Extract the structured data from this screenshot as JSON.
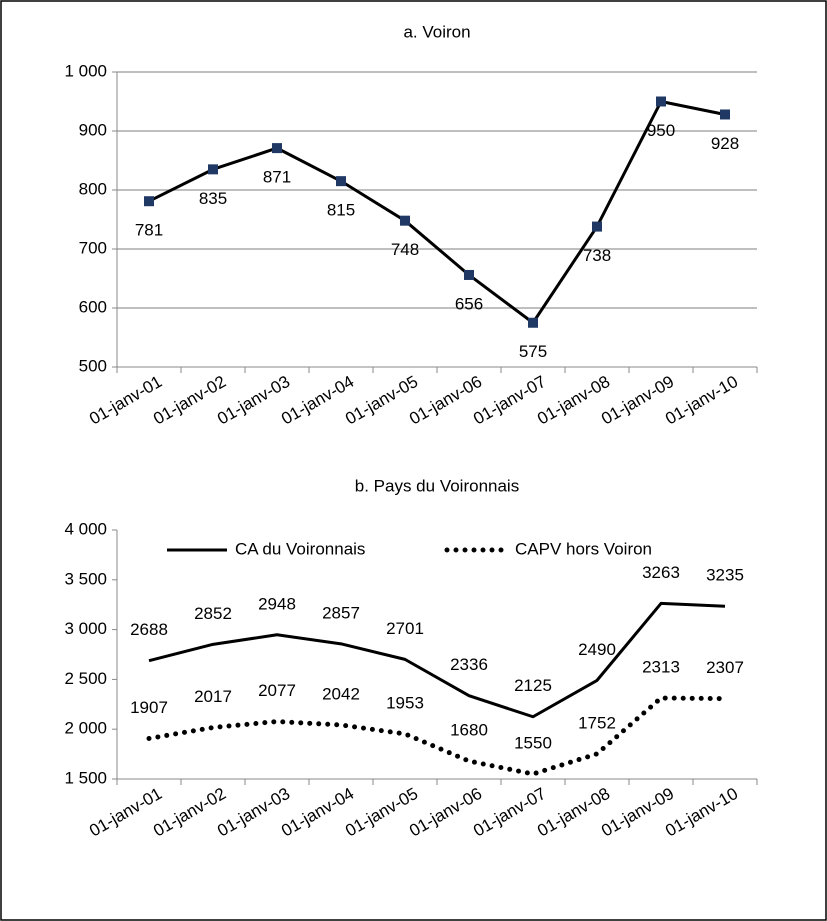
{
  "chart_data": [
    {
      "type": "line",
      "title": "a. Voiron",
      "categories": [
        "01-janv-01",
        "01-janv-02",
        "01-janv-03",
        "01-janv-04",
        "01-janv-05",
        "01-janv-06",
        "01-janv-07",
        "01-janv-08",
        "01-janv-09",
        "01-janv-10"
      ],
      "values": [
        781,
        835,
        871,
        815,
        748,
        656,
        575,
        738,
        950,
        928
      ],
      "color": "#000000",
      "marker": "square",
      "marker_color": "#1f3864",
      "ylim": [
        500,
        1000
      ],
      "yticks": [
        500,
        600,
        700,
        800,
        900,
        {
          "value": 1000,
          "label": "1 000"
        }
      ],
      "grid": true
    },
    {
      "type": "line",
      "title": "b. Pays du Voironnais",
      "categories": [
        "01-janv-01",
        "01-janv-02",
        "01-janv-03",
        "01-janv-04",
        "01-janv-05",
        "01-janv-06",
        "01-janv-07",
        "01-janv-08",
        "01-janv-09",
        "01-janv-10"
      ],
      "series": [
        {
          "name": "CA du Voironnais",
          "color": "#000000",
          "style": "solid",
          "values": [
            2688,
            2852,
            2948,
            2857,
            2701,
            2336,
            2125,
            2490,
            3263,
            3235
          ]
        },
        {
          "name": "CAPV hors Voiron",
          "color": "#000000",
          "style": "dotted",
          "values": [
            1907,
            2017,
            2077,
            2042,
            1953,
            1680,
            1550,
            1752,
            2313,
            2307
          ]
        }
      ],
      "ylim": [
        1500,
        4000
      ],
      "yticks": [
        {
          "value": 1500,
          "label": "1 500"
        },
        {
          "value": 2000,
          "label": "2 000"
        },
        {
          "value": 2500,
          "label": "2 500"
        },
        {
          "value": 3000,
          "label": "3 000"
        },
        {
          "value": 3500,
          "label": "3 500"
        },
        {
          "value": 4000,
          "label": "4 000"
        }
      ],
      "grid": false,
      "legend": "top"
    }
  ]
}
